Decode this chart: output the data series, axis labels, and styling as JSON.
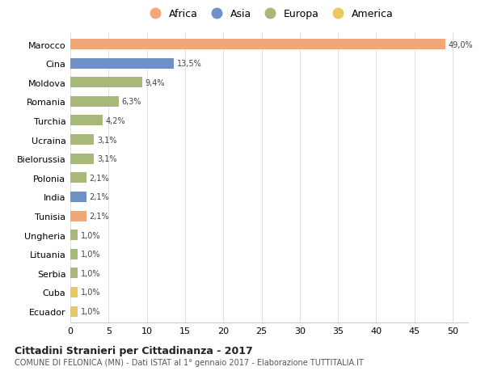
{
  "countries": [
    "Marocco",
    "Cina",
    "Moldova",
    "Romania",
    "Turchia",
    "Ucraina",
    "Bielorussia",
    "Polonia",
    "India",
    "Tunisia",
    "Ungheria",
    "Lituania",
    "Serbia",
    "Cuba",
    "Ecuador"
  ],
  "values": [
    49.0,
    13.5,
    9.4,
    6.3,
    4.2,
    3.1,
    3.1,
    2.1,
    2.1,
    2.1,
    1.0,
    1.0,
    1.0,
    1.0,
    1.0
  ],
  "labels": [
    "49,0%",
    "13,5%",
    "9,4%",
    "6,3%",
    "4,2%",
    "3,1%",
    "3,1%",
    "2,1%",
    "2,1%",
    "2,1%",
    "1,0%",
    "1,0%",
    "1,0%",
    "1,0%",
    "1,0%"
  ],
  "continents": [
    "Africa",
    "Asia",
    "Europa",
    "Europa",
    "Europa",
    "Europa",
    "Europa",
    "Europa",
    "Asia",
    "Africa",
    "Europa",
    "Europa",
    "Europa",
    "America",
    "America"
  ],
  "colors": {
    "Africa": "#F0A878",
    "Asia": "#7090C8",
    "Europa": "#A8B878",
    "America": "#E8C860"
  },
  "legend_order": [
    "Africa",
    "Asia",
    "Europa",
    "America"
  ],
  "title": "Cittadini Stranieri per Cittadinanza - 2017",
  "subtitle": "COMUNE DI FELONICA (MN) - Dati ISTAT al 1° gennaio 2017 - Elaborazione TUTTITALIA.IT",
  "xlim": [
    0,
    52
  ],
  "xtick_interval": 5,
  "background_color": "#ffffff",
  "grid_color": "#e0e0e0",
  "bar_height": 0.55
}
